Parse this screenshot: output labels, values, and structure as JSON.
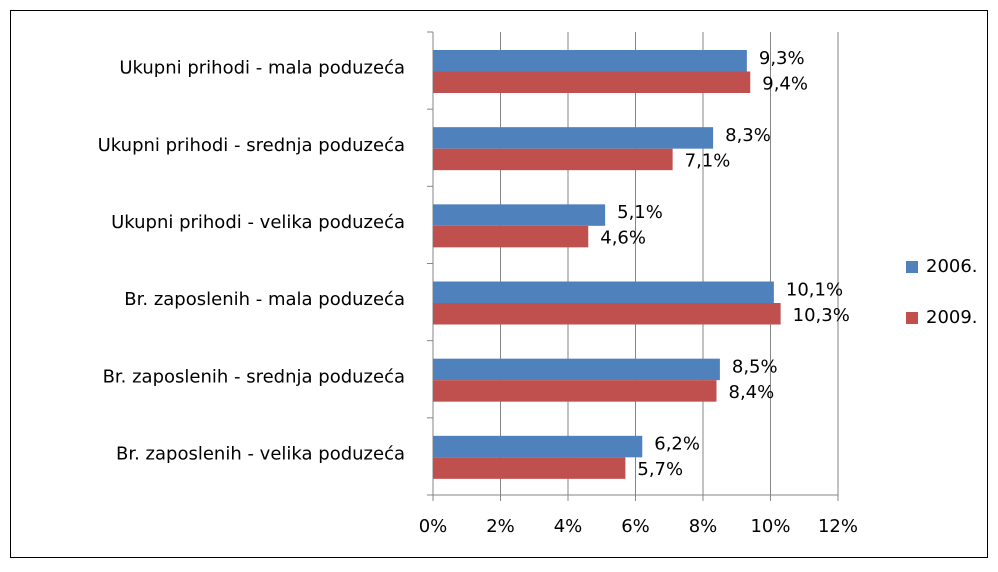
{
  "chart_data": {
    "type": "bar",
    "categories": [
      "Ukupni prihodi - mala poduzeća",
      "Ukupni prihodi - srednja poduzeća",
      "Ukupni prihodi - velika poduzeća",
      "Br. zaposlenih - mala poduzeća",
      "Br. zaposlenih - srednja poduzeća",
      "Br. zaposlenih - velika poduzeća"
    ],
    "series": [
      {
        "name": "2006.",
        "color": "#4f81bd",
        "values": [
          9.3,
          8.3,
          5.1,
          10.1,
          8.5,
          6.2
        ],
        "value_labels": [
          "9,3%",
          "8,3%",
          "5,1%",
          "10,1%",
          "8,5%",
          "6,2%"
        ]
      },
      {
        "name": "2009.",
        "color": "#c0504d",
        "values": [
          9.4,
          7.1,
          4.6,
          10.3,
          8.4,
          5.7
        ],
        "value_labels": [
          "9,4%",
          "7,1%",
          "4,6%",
          "10,3%",
          "8,4%",
          "5,7%"
        ]
      }
    ],
    "xlim": [
      0,
      12
    ],
    "xticks": [
      {
        "value": 0,
        "label": "0%"
      },
      {
        "value": 2,
        "label": "2%"
      },
      {
        "value": 4,
        "label": "4%"
      },
      {
        "value": 6,
        "label": "6%"
      },
      {
        "value": 8,
        "label": "8%"
      },
      {
        "value": 10,
        "label": "10%"
      },
      {
        "value": 12,
        "label": "12%"
      }
    ],
    "grid": true,
    "legend": "right"
  }
}
